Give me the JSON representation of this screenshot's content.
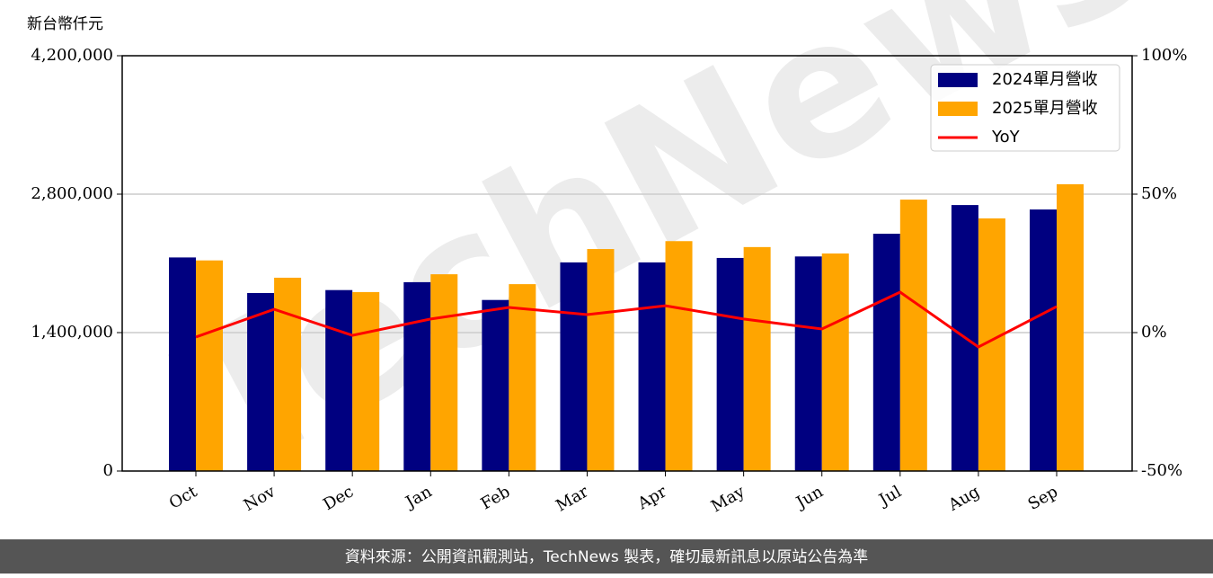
{
  "chart_data": {
    "type": "bar",
    "y_label": "新台幣仟元",
    "categories": [
      "Oct",
      "Nov",
      "Dec",
      "Jan",
      "Feb",
      "Mar",
      "Apr",
      "May",
      "Jun",
      "Jul",
      "Aug",
      "Sep"
    ],
    "series": [
      {
        "name": "2024單月營收",
        "color": "#000080",
        "values": [
          2160000,
          1800000,
          1830000,
          1910000,
          1730000,
          2110000,
          2110000,
          2155000,
          2170000,
          2400000,
          2690000,
          2645000
        ]
      },
      {
        "name": "2025單月營收",
        "color": "#ffa500",
        "values": [
          2130000,
          1955000,
          1810000,
          1990000,
          1890000,
          2245000,
          2325000,
          2265000,
          2200000,
          2745000,
          2555000,
          2900000
        ]
      },
      {
        "name": "YoY",
        "type": "line",
        "axis": "y2",
        "color": "#ff0000",
        "values": [
          -1.6,
          8.4,
          -1.0,
          4.9,
          9.1,
          6.5,
          9.7,
          4.9,
          1.3,
          14.6,
          -5.2,
          9.4
        ]
      }
    ],
    "ylim": [
      0,
      4200000
    ],
    "yticks": [
      0,
      {
        "value": 1400000,
        "label": "1,400,000"
      },
      {
        "value": 2800000,
        "label": "2,800,000"
      },
      {
        "value": 4200000,
        "label": "4,200,000"
      }
    ],
    "y2lim": [
      -50,
      100
    ],
    "y2ticks": [
      {
        "value": -50,
        "label": "-50%"
      },
      {
        "value": 0,
        "label": "0%"
      },
      {
        "value": 50,
        "label": "50%"
      },
      {
        "value": 100,
        "label": "100%"
      }
    ],
    "grid": true,
    "legend": "upper right",
    "watermark": "TechNews",
    "footer": "資料來源：公開資訊觀測站，TechNews 製表，確切最新訊息以原站公告為準"
  }
}
